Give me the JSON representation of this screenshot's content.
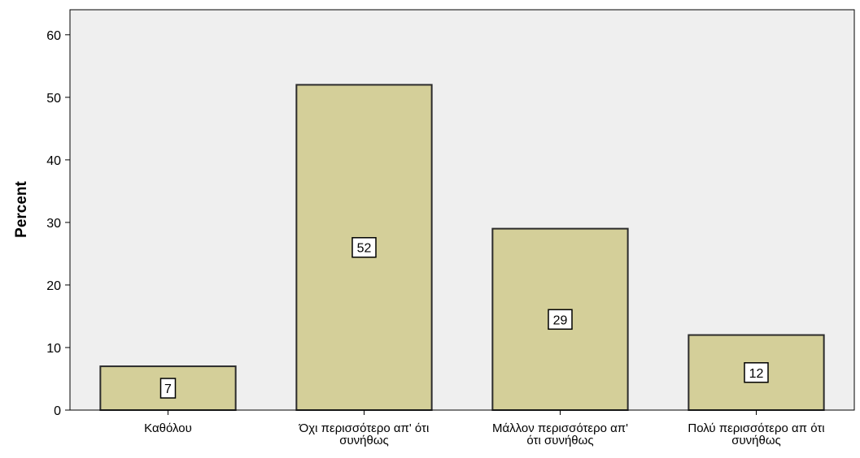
{
  "chart_data": {
    "type": "bar",
    "title": "",
    "xlabel": "",
    "ylabel": "Percent",
    "ylim": [
      0,
      64
    ],
    "yticks": [
      0,
      10,
      20,
      30,
      40,
      50,
      60
    ],
    "grid": false,
    "legend": "none",
    "categories": [
      "Καθόλου",
      "Όχι περισσότερο απ' ότι συνήθως",
      "Μάλλον περισσότερο απ' ότι συνήθως",
      "Πολύ περισσότερο απ ότι συνήθως"
    ],
    "category_lines": [
      [
        "Καθόλου"
      ],
      [
        "Όχι περισσότερο απ' ότι",
        "συνήθως"
      ],
      [
        "Μάλλον περισσότερο απ'",
        "ότι συνήθως"
      ],
      [
        "Πολύ περισσότερο απ ότι",
        "συνήθως"
      ]
    ],
    "values": [
      7,
      52,
      29,
      12
    ],
    "data_labels": [
      "7",
      "52",
      "29",
      "12"
    ],
    "colors": {
      "bar_fill": "#d4cf99",
      "bar_stroke": "#2b2b2b",
      "plot_background": "#efefef",
      "axis": "#000000"
    }
  }
}
